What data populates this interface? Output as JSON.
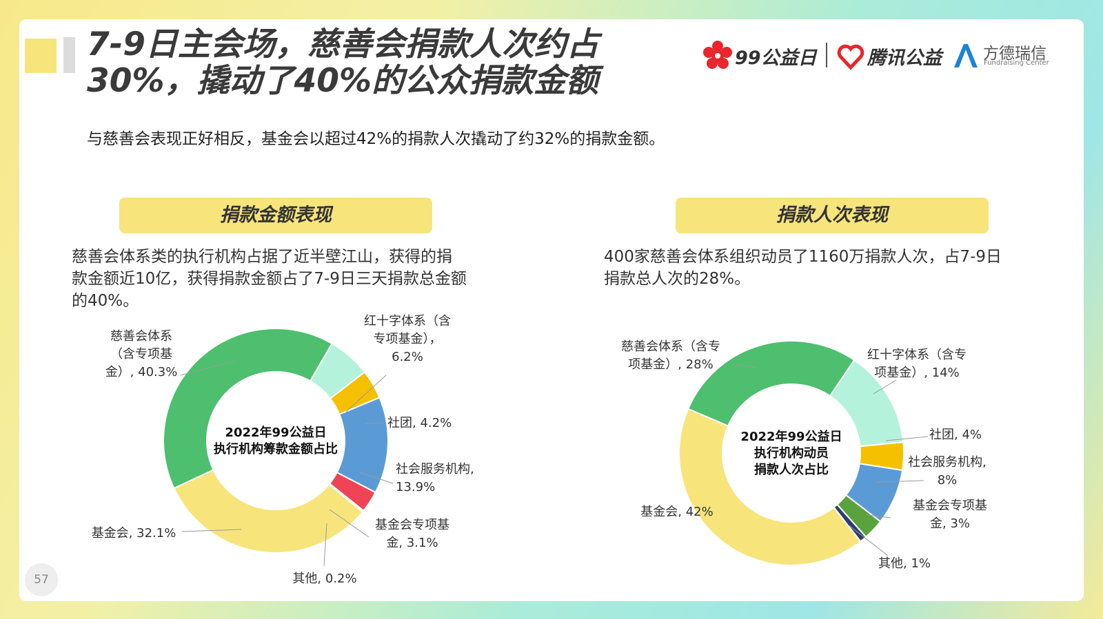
{
  "header": {
    "title_line1": "7-9日主会场，慈善会捐款人次约占",
    "title_line2": "30%，撬动了40%的公众捐款金额",
    "subtitle": "与慈善会表现正好相反，基金会以超过42%的捐款人次撬动了约32%的捐款金额。"
  },
  "logos": {
    "logo1_text": "99公益日",
    "logo2_text": "腾讯公益",
    "logo3_text": "方德瑞信",
    "logo3_sub": "Fundraising Center"
  },
  "left_panel": {
    "heading": "捐款金额表现",
    "desc_line1": "慈善会体系类的执行机构占据了近半壁江山，获得的捐",
    "desc_line2": "款金额近10亿，获得捐款金额占了7-9日三天捐款总金额",
    "desc_line3": "的40%。"
  },
  "right_panel": {
    "heading": "捐款人次表现",
    "desc_line1": "400家慈善会体系组织动员了1160万捐款人次，占7-9日",
    "desc_line2": "捐款总人次的28%。"
  },
  "page_number": "57",
  "chart_data": [
    {
      "type": "pie",
      "center_label": [
        "2022年99公益日",
        "执行机构筹款金额占比"
      ],
      "slices": [
        {
          "label": [
            "红十字体系（含",
            "专项基金），",
            "6.2%"
          ],
          "value": 6.2,
          "color": "#b5f2dc"
        },
        {
          "label": [
            "社团, 4.2%"
          ],
          "value": 4.2,
          "color": "#f5c000"
        },
        {
          "label": [
            "社会服务机构,",
            "13.9%"
          ],
          "value": 13.9,
          "color": "#5b9bd5"
        },
        {
          "label": [
            "基金会专项基",
            "金, 3.1%"
          ],
          "value": 3.1,
          "color": "#ee4455"
        },
        {
          "label": [
            "其他, 0.2%"
          ],
          "value": 0.2,
          "color": "#2f3f6b"
        },
        {
          "label": [
            "基金会, 32.1%"
          ],
          "value": 32.1,
          "color": "#f7e57c"
        },
        {
          "label": [
            "慈善会体系",
            "（含专项基",
            "金）, 40.3%"
          ],
          "value": 40.3,
          "color": "#4dbf6e"
        }
      ]
    },
    {
      "type": "pie",
      "center_label": [
        "2022年99公益日",
        "执行机构动员",
        "捐款人次占比"
      ],
      "slices": [
        {
          "label": [
            "红十字体系（含专",
            "项基金）, 14%"
          ],
          "value": 14,
          "color": "#b5f2dc"
        },
        {
          "label": [
            "社团, 4%"
          ],
          "value": 4,
          "color": "#f5c000"
        },
        {
          "label": [
            "社会服务机构,",
            "8%"
          ],
          "value": 8,
          "color": "#5b9bd5"
        },
        {
          "label": [
            "基金会专项基",
            "金, 3%"
          ],
          "value": 3,
          "color": "#5aa33c"
        },
        {
          "label": [
            "其他, 1%"
          ],
          "value": 1,
          "color": "#2f3f6b"
        },
        {
          "label": [
            "基金会, 42%"
          ],
          "value": 42,
          "color": "#f7e57c"
        },
        {
          "label": [
            "慈善会体系（含专",
            "项基金）, 28%"
          ],
          "value": 28,
          "color": "#4dbf6e"
        }
      ]
    }
  ]
}
